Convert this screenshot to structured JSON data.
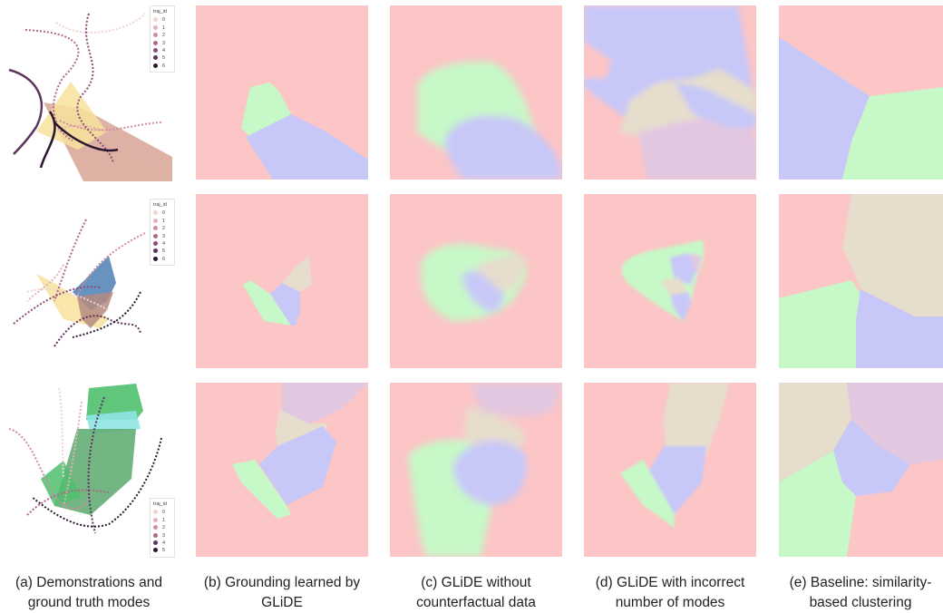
{
  "figure": {
    "captions": [
      {
        "line1": "(a) Demonstrations and",
        "line2": "ground truth modes"
      },
      {
        "line1": "(b) Grounding learned by",
        "line2": "GLiDE"
      },
      {
        "line1": "(c) GLiDE without",
        "line2": "counterfactual data"
      },
      {
        "line1": "(d) GLiDE with incorrect",
        "line2": "number of modes"
      },
      {
        "line1": "(e) Baseline: similarity-",
        "line2": "based clustering"
      }
    ],
    "legend": {
      "title": "traj_id",
      "rows": [
        {
          "items": [
            "0",
            "1",
            "2",
            "3",
            "4",
            "5",
            "6"
          ]
        },
        {
          "items": [
            "0",
            "1",
            "2",
            "3",
            "4",
            "5",
            "6"
          ]
        },
        {
          "items": [
            "0",
            "1",
            "2",
            "3",
            "4",
            "5"
          ]
        }
      ],
      "colors": [
        "#f0d5d0",
        "#e4b2b6",
        "#cf8d9f",
        "#b0688a",
        "#8a4d78",
        "#5e335d",
        "#2c1630"
      ]
    },
    "mode_colors": {
      "red": "#fcc5c6",
      "green": "#c7f8c7",
      "blue": "#c8c8f8",
      "beige": "#e6ddcc",
      "pink": "#e2c7e1",
      "gt_yellow": "#f7e29c",
      "gt_brown": "#d7a595",
      "gt_blue": "#4e7fb5",
      "gt_green": "#4fc06d",
      "gt_cyan": "#8fe6e2"
    }
  }
}
